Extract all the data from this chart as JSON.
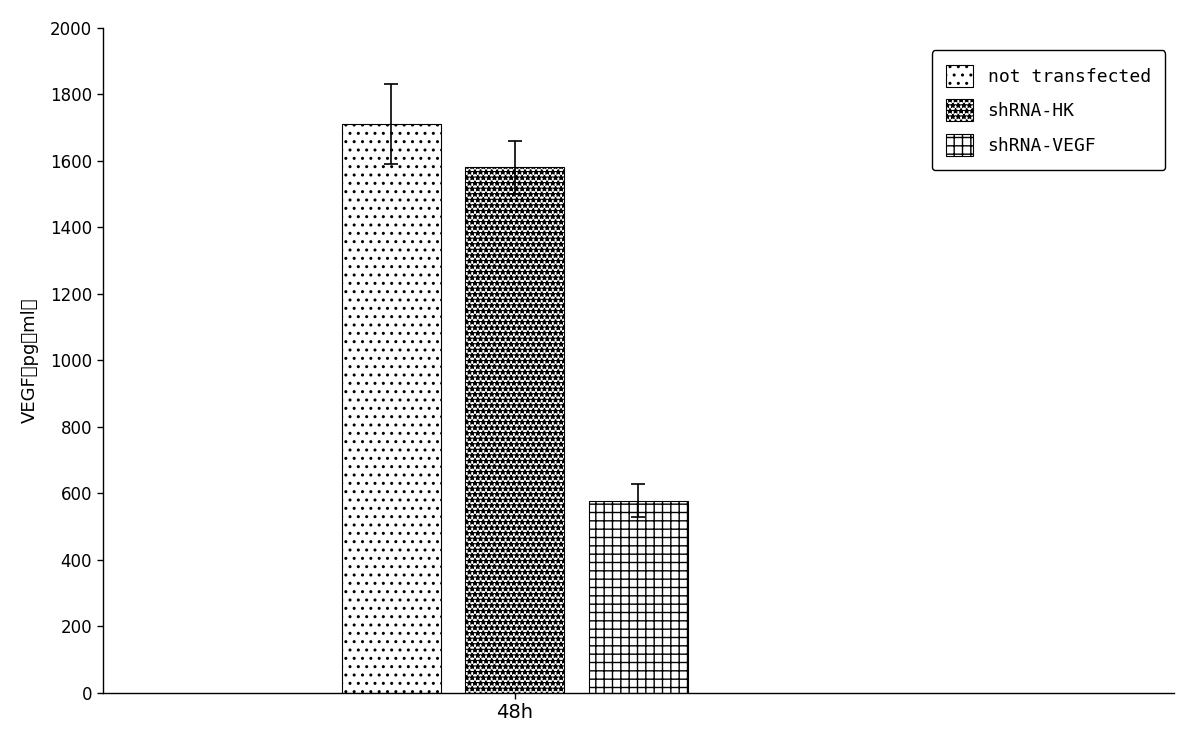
{
  "bar_labels": [
    "not transfected",
    "shRNA-HK",
    "shRNA-VEGF"
  ],
  "values": [
    1710,
    1580,
    578
  ],
  "errors": [
    120,
    80,
    50
  ],
  "bar_width": 0.12,
  "bar_positions": [
    -0.15,
    0.0,
    0.15
  ],
  "hatches_bar": [
    "..",
    "***",
    "++"
  ],
  "hatches_legend": [
    "..",
    "***",
    "++"
  ],
  "bar_facecolors": [
    "white",
    "white",
    "white"
  ],
  "bar_edgecolors": [
    "black",
    "black",
    "black"
  ],
  "xlabel": "48h",
  "ylabel": "VEGF（pg／ml）",
  "ylim": [
    0,
    2000
  ],
  "yticks": [
    0,
    200,
    400,
    600,
    800,
    1000,
    1200,
    1400,
    1600,
    1800,
    2000
  ],
  "legend_font": "monospace",
  "legend_fontsize": 13,
  "axis_fontsize": 13,
  "tick_fontsize": 12,
  "background_color": "white",
  "figure_background": "white",
  "xlim": [
    -0.5,
    0.8
  ]
}
